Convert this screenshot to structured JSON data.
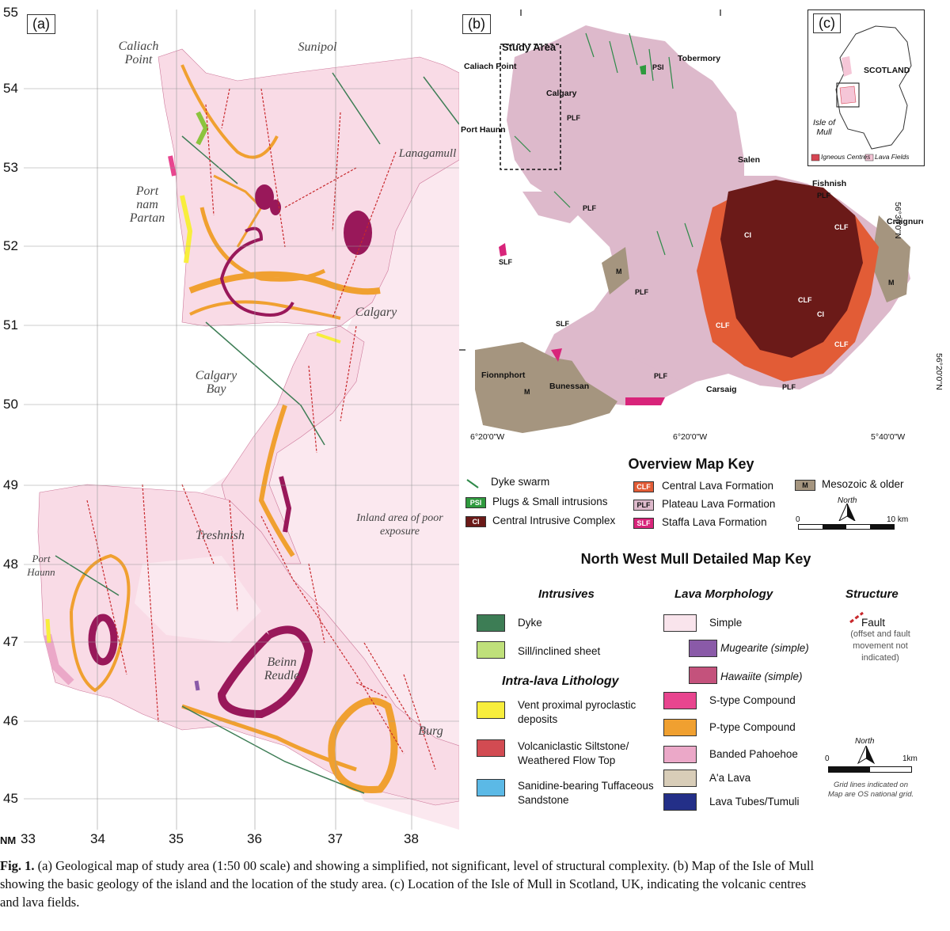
{
  "panel_a": {
    "label": "(a)",
    "y_ticks": [
      "55",
      "54",
      "53",
      "52",
      "51",
      "50",
      "49",
      "48",
      "47",
      "46",
      "45"
    ],
    "x_prefix": "NM",
    "x_ticks": [
      "33",
      "34",
      "35",
      "36",
      "37",
      "38"
    ],
    "places": {
      "caliach": "Caliach\nPoint",
      "sunipol": "Sunipol",
      "lanagamull": "Lanagamull",
      "port_nam_partan": "Port\nnam\nPartan",
      "calgary": "Calgary",
      "calgary_bay": "Calgary\nBay",
      "inland": "Inland area of poor\nexposure",
      "treshnish": "Treshnish",
      "port_haunn": "Port\nHaunn",
      "beinn_reudle": "Beinn\nReudle",
      "burg": "Burg"
    }
  },
  "panel_b": {
    "label": "(b)",
    "study_area": "Study Area",
    "places": {
      "caliach_point": "Caliach Point",
      "calgary": "Calgary",
      "port_haunn": "Port Haunn",
      "tobermory": "Tobermory",
      "salen": "Salen",
      "fishnish": "Fishnish",
      "craignure": "Craignure",
      "fionnphort": "Fionnphort",
      "bunessan": "Bunessan",
      "carsaig": "Carsaig"
    },
    "units": [
      "PSI",
      "PLF",
      "PLF",
      "SLF",
      "SLF",
      "PLF",
      "M",
      "M",
      "CI",
      "CI",
      "CLF",
      "CLF",
      "CLF",
      "CLF",
      "PLF",
      "M",
      "PLF",
      "PLF"
    ],
    "lon_labels": [
      "6°20'0\"W",
      "6°20'0\"W",
      "5°40'0\"W"
    ],
    "lat_labels": [
      "56°30'0\"N",
      "56°20'0\"N"
    ]
  },
  "panel_c": {
    "label": "(c)",
    "scotland": "SCOTLAND",
    "isle": "Isle of\nMull",
    "legend": [
      "Igneous Centres",
      "Lava Fields"
    ]
  },
  "overview_key": {
    "title": "Overview Map Key",
    "items": [
      {
        "code": "",
        "label": "Dyke swarm"
      },
      {
        "code": "PSI",
        "label": "Plugs & Small intrusions"
      },
      {
        "code": "CI",
        "label": "Central Intrusive Complex"
      },
      {
        "code": "CLF",
        "label": "Central Lava Formation"
      },
      {
        "code": "PLF",
        "label": "Plateau Lava Formation"
      },
      {
        "code": "SLF",
        "label": "Staffa Lava Formation"
      },
      {
        "code": "M",
        "label": "Mesozoic & older"
      }
    ],
    "north": "North",
    "scale_start": "0",
    "scale_end": "10 km"
  },
  "detailed_key": {
    "title": "North West Mull Detailed Map Key",
    "intrusives_head": "Intrusives",
    "lava_head": "Lava Morphology",
    "structure_head": "Structure",
    "intra_head": "Intra-lava Lithology",
    "intrusives": [
      "Dyke",
      "Sill/inclined sheet"
    ],
    "intra": [
      "Vent proximal pyroclastic\ndeposits",
      "Volcaniclastic Siltstone/\nWeathered Flow Top",
      "Sanidine-bearing Tuffaceous\nSandstone"
    ],
    "lava": [
      "Simple",
      "Mugearite (simple)",
      "Hawaiite (simple)",
      "S-type Compound",
      "P-type Compound",
      "Banded Pahoehoe",
      "A'a Lava",
      "Lava Tubes/Tumuli"
    ],
    "fault": "Fault",
    "fault_note": "(offset and fault\nmovement not\nindicated)",
    "north": "North",
    "scale_start": "0",
    "scale_end": "1km",
    "grid_note": "Grid lines indicated on\nMap are OS national grid."
  },
  "colors": {
    "simple": "#f9dbe6",
    "inland": "#fbe8ef",
    "dyke": "#3d7d55",
    "sill": "#bfe07a",
    "vent": "#f8ee3c",
    "volcaniclastic": "#d24b52",
    "sanidine": "#5bb9e6",
    "mugearite": "#8a5aa8",
    "hawaiite": "#c4527c",
    "s_type": "#e8458f",
    "p_type": "#f0a030",
    "banded": "#eba8c8",
    "aa": "#d8cdb8",
    "tubes": "#232f88",
    "fault": "#c8282c",
    "plf": "#ddb9cb",
    "ci": "#6b1a18",
    "clf": "#e25c36",
    "mesozoic": "#a5957f",
    "slf": "#d8247a",
    "psi": "#2f9a3e",
    "intrusion": "#99185a"
  },
  "caption": {
    "fig": "Fig. 1.",
    "text_a": " (a) Geological map of study area (1:50 00 scale) and showing a simplified, not significant, level of structural complexity. (b) Map of the Isle of Mull",
    "text_b": "showing the basic geology of the island and the location of the study area. (c) Location of the Isle of Mull in Scotland, UK, indicating the volcanic centres",
    "text_c": "and lava fields."
  }
}
